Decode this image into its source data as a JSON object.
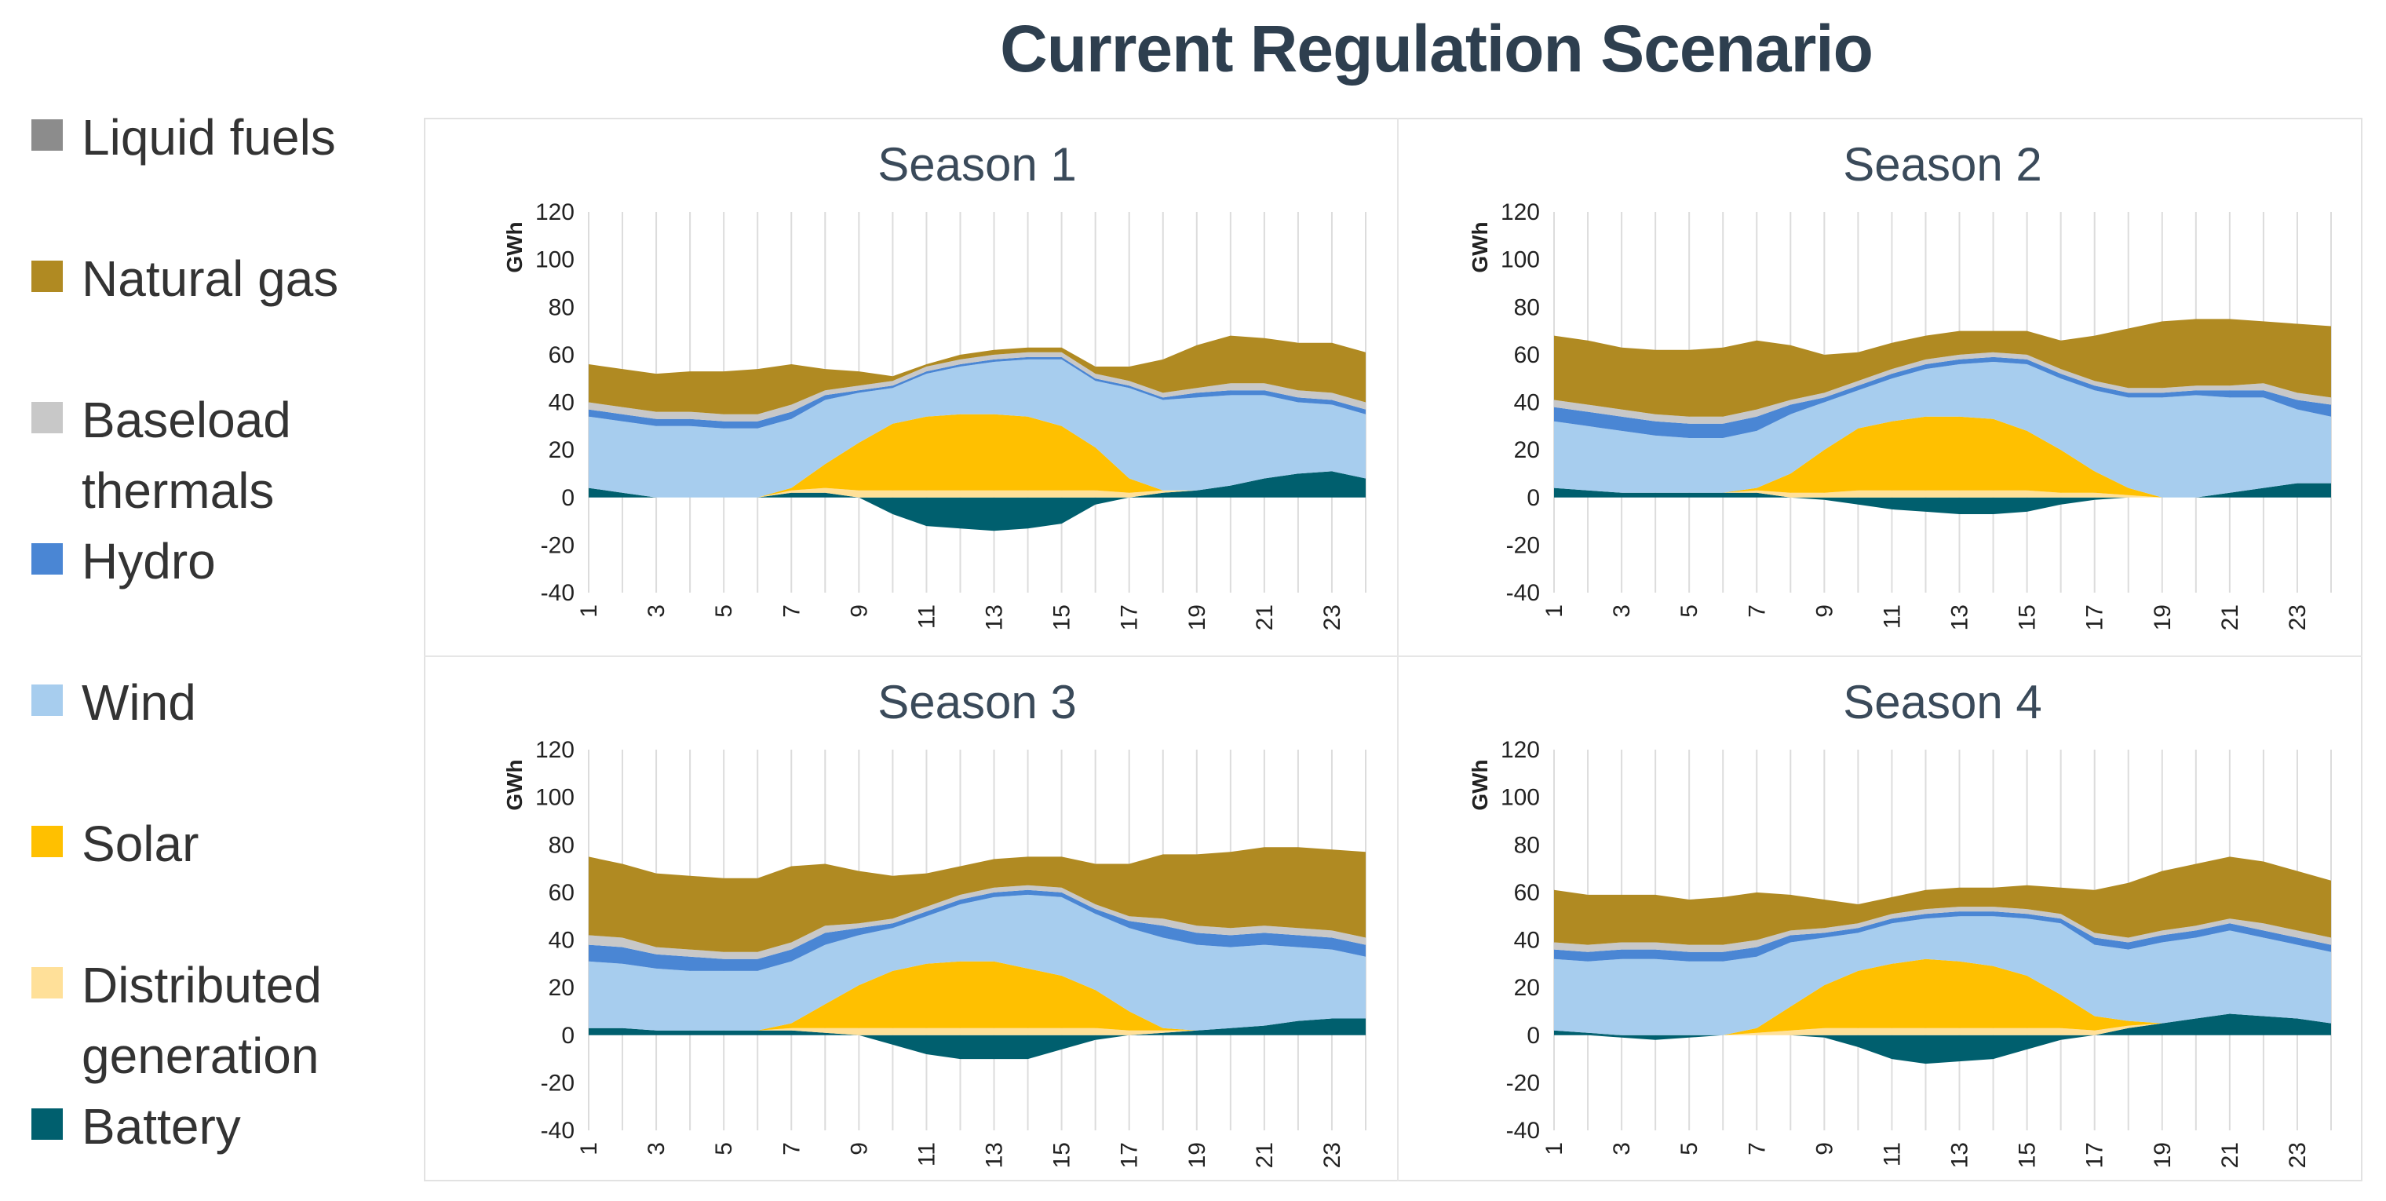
{
  "title": "Current Regulation Scenario",
  "legend": [
    {
      "label": "Liquid fuels",
      "color": "#8c8c8c"
    },
    {
      "label": "Natural gas",
      "color": "#b08a22"
    },
    {
      "label": "Baseload\nthermals",
      "color": "#c8c8c8"
    },
    {
      "label": "Hydro",
      "color": "#4a86d4"
    },
    {
      "label": "Wind",
      "color": "#a7cdee"
    },
    {
      "label": "Solar",
      "color": "#ffc000"
    },
    {
      "label": "Distributed\ngeneration",
      "color": "#ffe099"
    },
    {
      "label": "Battery",
      "color": "#005f6e"
    }
  ],
  "chart_data": [
    {
      "type": "area",
      "title": "Season 1",
      "ylabel": "GWh",
      "ylim": [
        -40,
        120
      ],
      "yticks": [
        -40,
        -20,
        0,
        20,
        40,
        60,
        80,
        100,
        120
      ],
      "x": [
        1,
        2,
        3,
        4,
        5,
        6,
        7,
        8,
        9,
        10,
        11,
        12,
        13,
        14,
        15,
        16,
        17,
        18,
        19,
        20,
        21,
        22,
        23,
        24
      ],
      "xtick_labels": [
        "1",
        "3",
        "5",
        "7",
        "9",
        "11",
        "13",
        "15",
        "17",
        "19",
        "21",
        "23"
      ],
      "grid": "vertical",
      "series": [
        {
          "name": "Battery",
          "values": [
            4,
            2,
            0,
            0,
            0,
            0,
            2,
            2,
            0,
            -7,
            -12,
            -13,
            -14,
            -13,
            -11,
            -3,
            0,
            2,
            3,
            5,
            8,
            10,
            11,
            8
          ]
        },
        {
          "name": "Distributed generation",
          "values": [
            0,
            0,
            0,
            0,
            0,
            0,
            1,
            2,
            3,
            3,
            3,
            3,
            3,
            3,
            3,
            3,
            2,
            1,
            0,
            0,
            0,
            0,
            0,
            0
          ]
        },
        {
          "name": "Solar",
          "values": [
            0,
            0,
            0,
            0,
            0,
            0,
            1,
            10,
            20,
            28,
            31,
            32,
            32,
            31,
            27,
            18,
            6,
            0,
            0,
            0,
            0,
            0,
            0,
            0
          ]
        },
        {
          "name": "Wind",
          "values": [
            30,
            30,
            30,
            30,
            29,
            29,
            29,
            27,
            21,
            15,
            18,
            20,
            22,
            24,
            28,
            28,
            38,
            38,
            39,
            38,
            35,
            30,
            28,
            27
          ]
        },
        {
          "name": "Hydro",
          "values": [
            3,
            3,
            3,
            3,
            3,
            3,
            3,
            2,
            1,
            1,
            1,
            1,
            1,
            1,
            1,
            1,
            1,
            1,
            2,
            2,
            2,
            2,
            2,
            2
          ]
        },
        {
          "name": "Baseload thermals",
          "values": [
            3,
            3,
            3,
            3,
            3,
            3,
            3,
            2,
            2,
            2,
            2,
            2,
            2,
            2,
            2,
            2,
            2,
            2,
            2,
            3,
            3,
            3,
            3,
            3
          ]
        },
        {
          "name": "Natural gas",
          "values": [
            16,
            16,
            16,
            17,
            18,
            19,
            17,
            9,
            6,
            2,
            1,
            2,
            2,
            2,
            2,
            3,
            6,
            14,
            18,
            20,
            19,
            20,
            21,
            21
          ]
        },
        {
          "name": "Liquid fuels",
          "values": [
            0,
            0,
            0,
            0,
            0,
            0,
            0,
            0,
            0,
            0,
            0,
            0,
            0,
            0,
            0,
            0,
            0,
            0,
            0,
            0,
            0,
            0,
            0,
            0
          ]
        }
      ]
    },
    {
      "type": "area",
      "title": "Season 2",
      "ylabel": "GWh",
      "ylim": [
        -40,
        120
      ],
      "yticks": [
        -40,
        -20,
        0,
        20,
        40,
        60,
        80,
        100,
        120
      ],
      "x": [
        1,
        2,
        3,
        4,
        5,
        6,
        7,
        8,
        9,
        10,
        11,
        12,
        13,
        14,
        15,
        16,
        17,
        18,
        19,
        20,
        21,
        22,
        23,
        24
      ],
      "xtick_labels": [
        "1",
        "3",
        "5",
        "7",
        "9",
        "11",
        "13",
        "15",
        "17",
        "19",
        "21",
        "23"
      ],
      "grid": "vertical",
      "series": [
        {
          "name": "Battery",
          "values": [
            4,
            3,
            2,
            2,
            2,
            2,
            2,
            0,
            -1,
            -3,
            -5,
            -6,
            -7,
            -7,
            -6,
            -3,
            -1,
            0,
            0,
            0,
            2,
            4,
            6,
            6
          ]
        },
        {
          "name": "Distributed generation",
          "values": [
            0,
            0,
            0,
            0,
            0,
            0,
            1,
            2,
            2,
            3,
            3,
            3,
            3,
            3,
            3,
            2,
            2,
            1,
            0,
            0,
            0,
            0,
            0,
            0
          ]
        },
        {
          "name": "Solar",
          "values": [
            0,
            0,
            0,
            0,
            0,
            0,
            1,
            8,
            18,
            26,
            29,
            31,
            31,
            30,
            25,
            18,
            9,
            3,
            0,
            0,
            0,
            0,
            0,
            0
          ]
        },
        {
          "name": "Wind",
          "values": [
            28,
            27,
            26,
            24,
            23,
            23,
            24,
            25,
            20,
            16,
            18,
            20,
            22,
            24,
            28,
            30,
            34,
            38,
            42,
            43,
            40,
            38,
            31,
            28
          ]
        },
        {
          "name": "Hydro",
          "values": [
            6,
            6,
            6,
            6,
            6,
            6,
            6,
            4,
            2,
            2,
            2,
            2,
            2,
            2,
            2,
            2,
            2,
            2,
            2,
            2,
            3,
            3,
            4,
            5
          ]
        },
        {
          "name": "Baseload thermals",
          "values": [
            3,
            3,
            3,
            3,
            3,
            3,
            3,
            2,
            2,
            2,
            2,
            2,
            2,
            2,
            2,
            2,
            2,
            2,
            2,
            2,
            2,
            3,
            3,
            3
          ]
        },
        {
          "name": "Natural gas",
          "values": [
            27,
            27,
            26,
            27,
            28,
            29,
            29,
            23,
            16,
            12,
            11,
            10,
            10,
            9,
            10,
            12,
            19,
            25,
            28,
            28,
            28,
            26,
            29,
            30
          ]
        },
        {
          "name": "Liquid fuels",
          "values": [
            0,
            0,
            0,
            0,
            0,
            0,
            0,
            0,
            0,
            0,
            0,
            0,
            0,
            0,
            0,
            0,
            0,
            0,
            0,
            0,
            0,
            0,
            0,
            0
          ]
        }
      ]
    },
    {
      "type": "area",
      "title": "Season 3",
      "ylabel": "GWh",
      "ylim": [
        -40,
        120
      ],
      "yticks": [
        -40,
        -20,
        0,
        20,
        40,
        60,
        80,
        100,
        120
      ],
      "x": [
        1,
        2,
        3,
        4,
        5,
        6,
        7,
        8,
        9,
        10,
        11,
        12,
        13,
        14,
        15,
        16,
        17,
        18,
        19,
        20,
        21,
        22,
        23,
        24
      ],
      "xtick_labels": [
        "1",
        "3",
        "5",
        "7",
        "9",
        "11",
        "13",
        "15",
        "17",
        "19",
        "21",
        "23"
      ],
      "grid": "vertical",
      "series": [
        {
          "name": "Battery",
          "values": [
            3,
            3,
            2,
            2,
            2,
            2,
            2,
            1,
            0,
            -4,
            -8,
            -10,
            -10,
            -10,
            -6,
            -2,
            0,
            1,
            2,
            3,
            4,
            6,
            7,
            7
          ]
        },
        {
          "name": "Distributed generation",
          "values": [
            0,
            0,
            0,
            0,
            0,
            0,
            1,
            2,
            3,
            3,
            3,
            3,
            3,
            3,
            3,
            3,
            2,
            1,
            0,
            0,
            0,
            0,
            0,
            0
          ]
        },
        {
          "name": "Solar",
          "values": [
            0,
            0,
            0,
            0,
            0,
            0,
            2,
            10,
            18,
            24,
            27,
            28,
            28,
            25,
            22,
            16,
            8,
            1,
            0,
            0,
            0,
            0,
            0,
            0
          ]
        },
        {
          "name": "Wind",
          "values": [
            28,
            27,
            26,
            25,
            25,
            25,
            26,
            25,
            21,
            18,
            20,
            24,
            27,
            31,
            33,
            32,
            35,
            38,
            36,
            34,
            34,
            31,
            29,
            26
          ]
        },
        {
          "name": "Hydro",
          "values": [
            7,
            7,
            6,
            6,
            5,
            5,
            5,
            5,
            3,
            2,
            2,
            2,
            2,
            2,
            2,
            2,
            3,
            5,
            5,
            5,
            5,
            5,
            5,
            5
          ]
        },
        {
          "name": "Baseload thermals",
          "values": [
            4,
            4,
            3,
            3,
            3,
            3,
            3,
            3,
            2,
            2,
            2,
            2,
            2,
            2,
            2,
            2,
            2,
            3,
            3,
            3,
            3,
            3,
            3,
            3
          ]
        },
        {
          "name": "Natural gas",
          "values": [
            33,
            31,
            31,
            31,
            31,
            31,
            32,
            26,
            22,
            18,
            14,
            12,
            12,
            12,
            13,
            17,
            22,
            27,
            30,
            32,
            33,
            34,
            34,
            36
          ]
        },
        {
          "name": "Liquid fuels",
          "values": [
            0,
            0,
            0,
            0,
            0,
            0,
            0,
            0,
            0,
            0,
            0,
            0,
            0,
            0,
            0,
            0,
            0,
            0,
            0,
            0,
            0,
            0,
            0,
            0
          ]
        }
      ]
    },
    {
      "type": "area",
      "title": "Season 4",
      "ylabel": "GWh",
      "ylim": [
        -40,
        120
      ],
      "yticks": [
        -40,
        -20,
        0,
        20,
        40,
        60,
        80,
        100,
        120
      ],
      "x": [
        1,
        2,
        3,
        4,
        5,
        6,
        7,
        8,
        9,
        10,
        11,
        12,
        13,
        14,
        15,
        16,
        17,
        18,
        19,
        20,
        21,
        22,
        23,
        24
      ],
      "xtick_labels": [
        "1",
        "3",
        "5",
        "7",
        "9",
        "11",
        "13",
        "15",
        "17",
        "19",
        "21",
        "23"
      ],
      "grid": "vertical",
      "series": [
        {
          "name": "Battery",
          "values": [
            2,
            1,
            -1,
            -2,
            -1,
            0,
            0,
            0,
            -1,
            -5,
            -10,
            -12,
            -11,
            -10,
            -6,
            -2,
            0,
            3,
            5,
            7,
            9,
            8,
            7,
            5
          ]
        },
        {
          "name": "Distributed generation",
          "values": [
            0,
            0,
            0,
            0,
            0,
            0,
            1,
            2,
            3,
            3,
            3,
            3,
            3,
            3,
            3,
            3,
            2,
            1,
            0,
            0,
            0,
            0,
            0,
            0
          ]
        },
        {
          "name": "Solar",
          "values": [
            0,
            0,
            0,
            0,
            0,
            0,
            2,
            10,
            18,
            24,
            27,
            29,
            28,
            26,
            22,
            14,
            6,
            2,
            0,
            0,
            0,
            0,
            0,
            0
          ]
        },
        {
          "name": "Wind",
          "values": [
            30,
            30,
            32,
            32,
            31,
            31,
            30,
            27,
            20,
            16,
            17,
            17,
            19,
            21,
            24,
            30,
            30,
            30,
            34,
            34,
            35,
            33,
            31,
            30
          ]
        },
        {
          "name": "Hydro",
          "values": [
            4,
            4,
            4,
            4,
            4,
            4,
            4,
            3,
            2,
            2,
            2,
            2,
            2,
            2,
            2,
            2,
            3,
            3,
            3,
            3,
            3,
            3,
            3,
            3
          ]
        },
        {
          "name": "Baseload thermals",
          "values": [
            3,
            3,
            3,
            3,
            3,
            3,
            3,
            2,
            2,
            2,
            2,
            2,
            2,
            2,
            2,
            2,
            2,
            2,
            2,
            2,
            2,
            3,
            3,
            3
          ]
        },
        {
          "name": "Natural gas",
          "values": [
            22,
            21,
            20,
            20,
            19,
            20,
            20,
            15,
            12,
            8,
            7,
            8,
            8,
            8,
            10,
            11,
            18,
            23,
            25,
            26,
            26,
            26,
            25,
            24
          ]
        },
        {
          "name": "Liquid fuels",
          "values": [
            0,
            0,
            0,
            0,
            0,
            0,
            0,
            0,
            0,
            0,
            0,
            0,
            0,
            0,
            0,
            0,
            0,
            0,
            0,
            0,
            0,
            0,
            0,
            0
          ]
        }
      ]
    }
  ]
}
